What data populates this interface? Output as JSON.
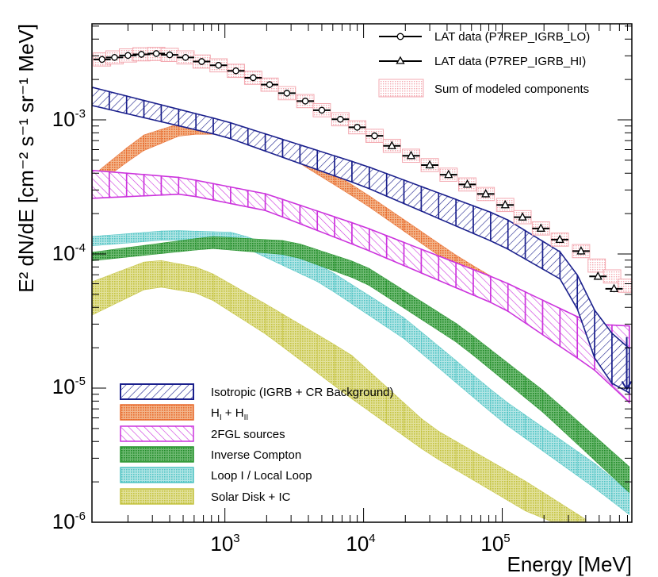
{
  "chart_data": {
    "type": "area",
    "xscale": "log",
    "yscale": "log",
    "xlim": [
      110,
      860000
    ],
    "ylim": [
      1e-06,
      0.0052
    ],
    "xlabel": "Energy [MeV]",
    "ylabel": "E² dN/dE [cm⁻² s⁻¹ sr⁻¹ MeV]",
    "xtick_labels": [
      {
        "value": 1000,
        "base": "10",
        "exp": "3"
      },
      {
        "value": 10000,
        "base": "10",
        "exp": "4"
      },
      {
        "value": 100000,
        "base": "10",
        "exp": "5"
      }
    ],
    "ytick_labels": [
      {
        "value": 1e-06,
        "base": "10",
        "exp": "-6"
      },
      {
        "value": 1e-05,
        "base": "10",
        "exp": "-5"
      },
      {
        "value": 0.0001,
        "base": "10",
        "exp": "-4"
      },
      {
        "value": 0.001,
        "base": "10",
        "exp": "-3"
      }
    ],
    "legend_top": [
      {
        "label": "LAT data (P7REP_IGRB_LO)",
        "marker": "circle"
      },
      {
        "label": "LAT data (P7REP_IGRB_HI)",
        "marker": "triangle"
      },
      {
        "label": "Sum of modeled components",
        "marker": "box"
      }
    ],
    "bands": [
      {
        "name": "Isotropic (IGRB + CR Background)",
        "stroke": "#1a1f8c",
        "fill": "#1a1f8c",
        "pattern": "hatch-back",
        "lower": [
          [
            110,
            0.00128
          ],
          [
            1000,
            0.00075
          ],
          [
            10000,
            0.00032
          ],
          [
            100000,
            0.000115
          ],
          [
            300000,
            6e-05
          ],
          [
            520000,
            1.2e-05
          ],
          [
            860000,
            9e-06
          ]
        ],
        "upper": [
          [
            110,
            0.00175
          ],
          [
            1000,
            0.00098
          ],
          [
            10000,
            0.00046
          ],
          [
            100000,
            0.00019
          ],
          [
            300000,
            9.5e-05
          ],
          [
            520000,
            3e-05
          ],
          [
            860000,
            1.9e-05
          ]
        ]
      },
      {
        "name": "H_I + H_II",
        "stroke": "#e8692a",
        "fill": "#e8692a",
        "pattern": "dots",
        "lower": [
          [
            110,
            0.00031
          ],
          [
            250,
            0.00058
          ],
          [
            500,
            0.00078
          ],
          [
            1000,
            0.00078
          ],
          [
            3000,
            0.00052
          ],
          [
            10000,
            0.00024
          ],
          [
            50000,
            7.5e-05
          ],
          [
            200000,
            3.2e-05
          ],
          [
            860000,
            1.2e-05
          ]
        ],
        "upper": [
          [
            110,
            0.00038
          ],
          [
            250,
            0.00076
          ],
          [
            500,
            0.00096
          ],
          [
            1000,
            0.00095
          ],
          [
            3000,
            0.00063
          ],
          [
            10000,
            0.00029
          ],
          [
            50000,
            9.3e-05
          ],
          [
            200000,
            4e-05
          ],
          [
            860000,
            1.8e-05
          ]
        ]
      },
      {
        "name": "2FGL sources",
        "stroke": "#cc33dd",
        "fill": "#cc33dd",
        "pattern": "hatch",
        "lower": [
          [
            110,
            0.00026
          ],
          [
            500,
            0.00028
          ],
          [
            2000,
            0.00021
          ],
          [
            10000,
            0.00011
          ],
          [
            100000,
            4e-05
          ],
          [
            450000,
            1.4e-05
          ],
          [
            860000,
            7.5e-06
          ]
        ],
        "upper": [
          [
            110,
            0.00042
          ],
          [
            500,
            0.00037
          ],
          [
            2000,
            0.00028
          ],
          [
            10000,
            0.00016
          ],
          [
            100000,
            6.3e-05
          ],
          [
            450000,
            3e-05
          ],
          [
            860000,
            2.9e-05
          ]
        ]
      },
      {
        "name": "Inverse Compton",
        "stroke": "#22922a",
        "fill": "#22922a",
        "pattern": "dots",
        "lower": [
          [
            110,
            8.9e-05
          ],
          [
            800,
            0.00011
          ],
          [
            3000,
            9.8e-05
          ],
          [
            10000,
            6.2e-05
          ],
          [
            50000,
            2.1e-05
          ],
          [
            200000,
            6.5e-06
          ],
          [
            860000,
            1.6e-06
          ]
        ],
        "upper": [
          [
            110,
            0.000103
          ],
          [
            800,
            0.000135
          ],
          [
            3000,
            0.000125
          ],
          [
            10000,
            8.3e-05
          ],
          [
            50000,
            2.9e-05
          ],
          [
            200000,
            9.5e-06
          ],
          [
            860000,
            2.5e-06
          ]
        ]
      },
      {
        "name": "Loop I / Local Loop",
        "stroke": "#4fc4c4",
        "fill": "#4fc4c4",
        "pattern": "dots",
        "lower": [
          [
            110,
            0.000115
          ],
          [
            400,
            0.000128
          ],
          [
            1200,
            0.00012
          ],
          [
            5000,
            6e-05
          ],
          [
            20000,
            2.3e-05
          ],
          [
            100000,
            5.6e-06
          ],
          [
            500000,
            1.7e-06
          ],
          [
            860000,
            1.1e-06
          ]
        ],
        "upper": [
          [
            110,
            0.000135
          ],
          [
            400,
            0.00015
          ],
          [
            1200,
            0.000145
          ],
          [
            5000,
            8.2e-05
          ],
          [
            20000,
            3.3e-05
          ],
          [
            100000,
            8.3e-06
          ],
          [
            500000,
            2.6e-06
          ],
          [
            860000,
            1.6e-06
          ]
        ]
      },
      {
        "name": "Solar Disk + IC",
        "stroke": "#c3c23d",
        "fill": "#c3c23d",
        "pattern": "dots",
        "lower": [
          [
            110,
            3.5e-05
          ],
          [
            300,
            5.8e-05
          ],
          [
            700,
            5e-05
          ],
          [
            2000,
            2.5e-05
          ],
          [
            8000,
            8.5e-06
          ],
          [
            30000,
            3.2e-06
          ],
          [
            150000,
            1.2e-06
          ],
          [
            400000,
            8e-07
          ]
        ],
        "upper": [
          [
            110,
            6.2e-05
          ],
          [
            300,
            9.2e-05
          ],
          [
            700,
            7.8e-05
          ],
          [
            2000,
            4.2e-05
          ],
          [
            8000,
            1.8e-05
          ],
          [
            30000,
            5.2e-06
          ],
          [
            150000,
            2e-06
          ],
          [
            400000,
            1.05e-06
          ]
        ]
      }
    ],
    "sum_boxes": [
      {
        "x": 130,
        "y": 0.00282
      },
      {
        "x": 160,
        "y": 0.00292
      },
      {
        "x": 200,
        "y": 0.00302
      },
      {
        "x": 250,
        "y": 0.00308
      },
      {
        "x": 320,
        "y": 0.0031
      },
      {
        "x": 400,
        "y": 0.00305
      },
      {
        "x": 520,
        "y": 0.00292
      },
      {
        "x": 680,
        "y": 0.00272
      },
      {
        "x": 900,
        "y": 0.00255
      },
      {
        "x": 1200,
        "y": 0.00232
      },
      {
        "x": 1600,
        "y": 0.00206
      },
      {
        "x": 2100,
        "y": 0.00183
      },
      {
        "x": 2800,
        "y": 0.00158
      },
      {
        "x": 3800,
        "y": 0.00138
      },
      {
        "x": 5000,
        "y": 0.00118
      },
      {
        "x": 6800,
        "y": 0.00101
      },
      {
        "x": 9000,
        "y": 0.00088
      },
      {
        "x": 12000,
        "y": 0.00076
      },
      {
        "x": 16000,
        "y": 0.00064
      },
      {
        "x": 22000,
        "y": 0.00054
      },
      {
        "x": 30000,
        "y": 0.00046
      },
      {
        "x": 41000,
        "y": 0.00039
      },
      {
        "x": 56000,
        "y": 0.00033
      },
      {
        "x": 76000,
        "y": 0.00028
      },
      {
        "x": 105000,
        "y": 0.000232
      },
      {
        "x": 140000,
        "y": 0.000188
      },
      {
        "x": 190000,
        "y": 0.000155
      },
      {
        "x": 260000,
        "y": 0.000128
      },
      {
        "x": 370000,
        "y": 0.000105
      },
      {
        "x": 480000,
        "y": 8.2e-05
      },
      {
        "x": 620000,
        "y": 6.8e-05
      },
      {
        "x": 790000,
        "y": 5.8e-05
      }
    ],
    "lat_lo": [
      {
        "x": 130,
        "y": 0.00282
      },
      {
        "x": 160,
        "y": 0.00292
      },
      {
        "x": 200,
        "y": 0.00302
      },
      {
        "x": 250,
        "y": 0.00308
      },
      {
        "x": 320,
        "y": 0.00312
      },
      {
        "x": 400,
        "y": 0.00305
      },
      {
        "x": 520,
        "y": 0.00292
      },
      {
        "x": 680,
        "y": 0.00272
      },
      {
        "x": 900,
        "y": 0.00255
      },
      {
        "x": 1200,
        "y": 0.00232
      },
      {
        "x": 1600,
        "y": 0.00206
      },
      {
        "x": 2100,
        "y": 0.00183
      },
      {
        "x": 2800,
        "y": 0.00158
      },
      {
        "x": 3800,
        "y": 0.00138
      },
      {
        "x": 5000,
        "y": 0.00118
      },
      {
        "x": 6800,
        "y": 0.00101
      },
      {
        "x": 9000,
        "y": 0.00088
      },
      {
        "x": 12000,
        "y": 0.00076
      }
    ],
    "lat_hi": [
      {
        "x": 16000,
        "y": 0.00064
      },
      {
        "x": 22000,
        "y": 0.00054
      },
      {
        "x": 30000,
        "y": 0.00046
      },
      {
        "x": 41000,
        "y": 0.00039
      },
      {
        "x": 56000,
        "y": 0.00033
      },
      {
        "x": 76000,
        "y": 0.00028
      },
      {
        "x": 105000,
        "y": 0.000232
      },
      {
        "x": 140000,
        "y": 0.000188
      },
      {
        "x": 190000,
        "y": 0.000155
      },
      {
        "x": 260000,
        "y": 0.000128
      },
      {
        "x": 370000,
        "y": 0.000105
      },
      {
        "x": 490000,
        "y": 6.8e-05
      },
      {
        "x": 640000,
        "y": 5.5e-05
      }
    ],
    "upper_limit": {
      "x": 790000,
      "y_from": 2.4e-05,
      "y_to": 9.8e-06
    }
  }
}
